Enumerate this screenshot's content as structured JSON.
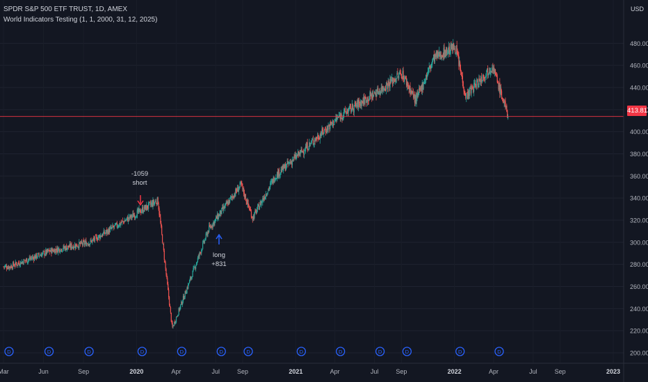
{
  "header": {
    "symbol_line": "SPDR S&P 500 ETF TRUST, 1D, AMEX",
    "indicator_line": "World Indicators Testing (1, 1, 2000, 31, 12, 2025)"
  },
  "currency": "USD",
  "last_price": "413.81",
  "colors": {
    "up": "#26a69a",
    "down": "#ef5350",
    "price_line": "#f23645",
    "event": "#2962ff"
  },
  "signals": {
    "short": {
      "amount": "-1059",
      "label": "short"
    },
    "long": {
      "label": "long",
      "amount": "+831"
    }
  },
  "chart_data": {
    "type": "candlestick",
    "y_ticks": [
      "480.00",
      "460.00",
      "440.00",
      "420.00",
      "400.00",
      "380.00",
      "360.00",
      "340.00",
      "320.00",
      "300.00",
      "280.00",
      "260.00",
      "240.00",
      "220.00",
      "200.00"
    ],
    "x_ticks": [
      "Mar",
      "Jun",
      "Sep",
      "2020",
      "Apr",
      "Jul",
      "Sep",
      "2021",
      "Apr",
      "Jul",
      "Sep",
      "2022",
      "Apr",
      "Jul",
      "Sep",
      "2023"
    ],
    "ylim": [
      200,
      490
    ],
    "series": [
      {
        "x": [
          "2019-03",
          "2019-06",
          "2019-09",
          "2019-12",
          "2020-02-19",
          "2020-03-23",
          "2020-06",
          "2020-08-28",
          "2020-09-24",
          "2020-11",
          "2021-01",
          "2021-04",
          "2021-07",
          "2021-09-02",
          "2021-10-04",
          "2021-11",
          "2022-01-03",
          "2022-01-27",
          "2022-03-29",
          "2022-05-05"
        ],
        "close": [
          278,
          292,
          300,
          322,
          338,
          222,
          312,
          352,
          322,
          360,
          382,
          415,
          438,
          453,
          428,
          467,
          477,
          432,
          460,
          413
        ]
      }
    ],
    "events": [
      "Mar",
      "Jun",
      "Sep",
      "2020",
      "Apr",
      "Jul",
      "Sep",
      "2021",
      "Apr",
      "Jul",
      "Sep",
      "2022",
      "Apr"
    ]
  }
}
